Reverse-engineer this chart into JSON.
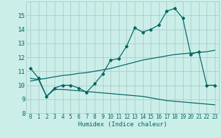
{
  "xlabel": "Humidex (Indice chaleur)",
  "bg_color": "#cceee8",
  "grid_color": "#aacccc",
  "line_color": "#006666",
  "xlim": [
    -0.5,
    23.5
  ],
  "ylim": [
    8,
    16
  ],
  "yticks": [
    8,
    9,
    10,
    11,
    12,
    13,
    14,
    15
  ],
  "xticks": [
    0,
    1,
    2,
    3,
    4,
    5,
    6,
    7,
    8,
    9,
    10,
    11,
    12,
    13,
    14,
    15,
    16,
    17,
    18,
    19,
    20,
    21,
    22,
    23
  ],
  "line1_x": [
    0,
    1,
    2,
    3,
    4,
    5,
    6,
    7,
    8,
    9,
    10,
    11,
    12,
    13,
    14,
    15,
    16,
    17,
    18,
    19,
    20,
    21,
    22,
    23
  ],
  "line1_y": [
    11.2,
    10.5,
    9.2,
    9.8,
    10.0,
    10.0,
    9.8,
    9.5,
    10.1,
    10.8,
    11.8,
    11.9,
    12.8,
    14.1,
    13.8,
    14.0,
    14.3,
    15.3,
    15.5,
    14.8,
    12.2,
    12.4,
    10.0,
    10.0
  ],
  "line2_x": [
    0,
    1,
    2,
    3,
    4,
    5,
    6,
    7,
    8,
    9,
    10,
    11,
    12,
    13,
    14,
    15,
    16,
    17,
    18,
    19,
    20,
    21,
    22,
    23
  ],
  "line2_y": [
    10.3,
    10.4,
    10.5,
    10.6,
    10.7,
    10.75,
    10.85,
    10.9,
    11.0,
    11.1,
    11.2,
    11.35,
    11.5,
    11.65,
    11.8,
    11.9,
    12.0,
    12.1,
    12.2,
    12.25,
    12.3,
    12.35,
    12.4,
    12.5
  ],
  "line3_x": [
    0,
    1,
    2,
    3,
    4,
    5,
    6,
    7,
    8,
    9,
    10,
    11,
    12,
    13,
    14,
    15,
    16,
    17,
    18,
    19,
    20,
    21,
    22,
    23
  ],
  "line3_y": [
    10.5,
    10.4,
    9.2,
    9.7,
    9.7,
    9.65,
    9.6,
    9.55,
    9.5,
    9.45,
    9.4,
    9.35,
    9.3,
    9.25,
    9.2,
    9.1,
    9.0,
    8.9,
    8.85,
    8.8,
    8.75,
    8.7,
    8.65,
    8.6
  ]
}
